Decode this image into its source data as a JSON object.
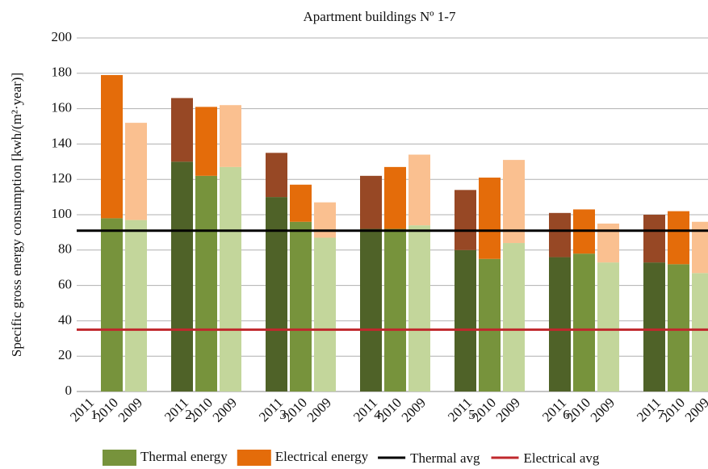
{
  "chart_data": {
    "type": "stacked_bar",
    "title": "Apartment buildings Nº 1-7",
    "y_label": "Specific gross energy consumption [kwh/(m²·year)]",
    "groups": [
      "1",
      "2",
      "3",
      "4",
      "5",
      "6",
      "7"
    ],
    "categories": [
      "2011",
      "2010",
      "2009"
    ],
    "series": [
      {
        "name": "Thermal energy",
        "color": "#77933c",
        "bar_colors": [
          "#4f6228",
          "#77933c",
          "#c3d69b"
        ],
        "values": [
          [
            null,
            98,
            97
          ],
          [
            130,
            122,
            127
          ],
          [
            110,
            96,
            87
          ],
          [
            92,
            92,
            94
          ],
          [
            80,
            75,
            84
          ],
          [
            76,
            78,
            73
          ],
          [
            73,
            72,
            67
          ]
        ]
      },
      {
        "name": "Electrical energy",
        "color": "#e46c0a",
        "bar_colors": [
          "#974825",
          "#e46c0a",
          "#fac090"
        ],
        "values": [
          [
            null,
            81,
            55
          ],
          [
            36,
            39,
            35
          ],
          [
            25,
            21,
            20
          ],
          [
            30,
            35,
            40
          ],
          [
            34,
            46,
            47
          ],
          [
            25,
            25,
            22
          ],
          [
            27,
            30,
            29
          ]
        ]
      }
    ],
    "lines": [
      {
        "name": "Thermal avg",
        "value": 91,
        "color": "#000000"
      },
      {
        "name": "Electrical avg",
        "value": 35,
        "color": "#c0282d"
      }
    ],
    "ylim": [
      0,
      200
    ],
    "yticks": [
      0,
      20,
      40,
      60,
      80,
      100,
      120,
      140,
      160,
      180,
      200
    ],
    "grid": true
  }
}
